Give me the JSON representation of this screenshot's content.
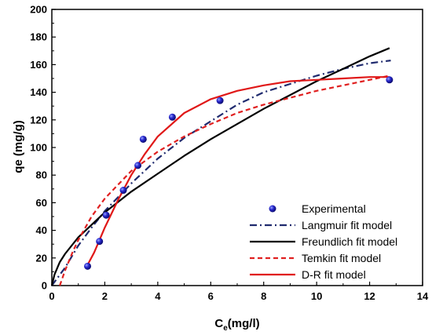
{
  "chart_data": {
    "type": "scatter",
    "xlabel_main": "C",
    "xlabel_sub": "e",
    "xlabel_rest": "(mg/l)",
    "ylabel": "qe (mg/g)",
    "xlim": [
      0,
      14
    ],
    "ylim": [
      0,
      200
    ],
    "x_ticks": [
      "0",
      "2",
      "4",
      "6",
      "8",
      "10",
      "12",
      "14"
    ],
    "y_ticks": [
      "0",
      "20",
      "40",
      "60",
      "80",
      "100",
      "120",
      "140",
      "160",
      "180",
      "200"
    ],
    "grid": false,
    "legend_position": "bottom-right",
    "series": [
      {
        "name": "Experimental",
        "kind": "points",
        "color": "#1a1aa6",
        "x": [
          1.35,
          1.8,
          2.05,
          2.7,
          3.25,
          3.45,
          4.55,
          6.35,
          12.75
        ],
        "y": [
          14,
          32,
          51,
          69,
          87,
          106,
          122,
          134,
          149
        ]
      },
      {
        "name": "Langmuir fit model",
        "kind": "line",
        "style": "dash-dot",
        "color": "#1f2a6e",
        "x": [
          0,
          0.5,
          1,
          1.5,
          2,
          3,
          4,
          5,
          6,
          7,
          8,
          9,
          10,
          11,
          12,
          12.8
        ],
        "y": [
          0,
          13,
          29,
          42,
          54,
          74,
          92,
          107,
          119,
          131,
          140,
          146,
          152,
          157,
          161,
          163
        ]
      },
      {
        "name": "Freundlich fit model",
        "kind": "line",
        "style": "solid",
        "color": "#000000",
        "x": [
          0,
          0.1,
          0.3,
          0.5,
          1,
          1.5,
          2,
          3,
          4,
          5,
          6,
          7,
          8,
          9,
          10,
          11,
          12,
          12.75
        ],
        "y": [
          0,
          8,
          17,
          23,
          35,
          44,
          53,
          68,
          81,
          94,
          106,
          117,
          128,
          138,
          148,
          157,
          166,
          172
        ]
      },
      {
        "name": "Temkin fit model",
        "kind": "line",
        "style": "dashed",
        "color": "#e02020",
        "x": [
          0.3,
          0.5,
          0.8,
          1,
          1.5,
          2,
          3,
          4,
          5,
          6,
          7,
          8,
          9,
          10,
          11,
          12,
          12.75
        ],
        "y": [
          0,
          11,
          25,
          33,
          50,
          63,
          83,
          97,
          108,
          117,
          125,
          131,
          136,
          141,
          145,
          149,
          152
        ]
      },
      {
        "name": "D-R fit model",
        "kind": "line",
        "style": "solid",
        "color": "#e01818",
        "x": [
          1.35,
          1.6,
          1.8,
          2.0,
          2.5,
          3,
          3.5,
          4,
          5,
          6,
          7,
          8,
          9,
          10,
          11,
          12,
          12.75
        ],
        "y": [
          15,
          24,
          33,
          42,
          62,
          80,
          95,
          108,
          125,
          135,
          141,
          145,
          148,
          149,
          150,
          151,
          151
        ]
      }
    ]
  }
}
